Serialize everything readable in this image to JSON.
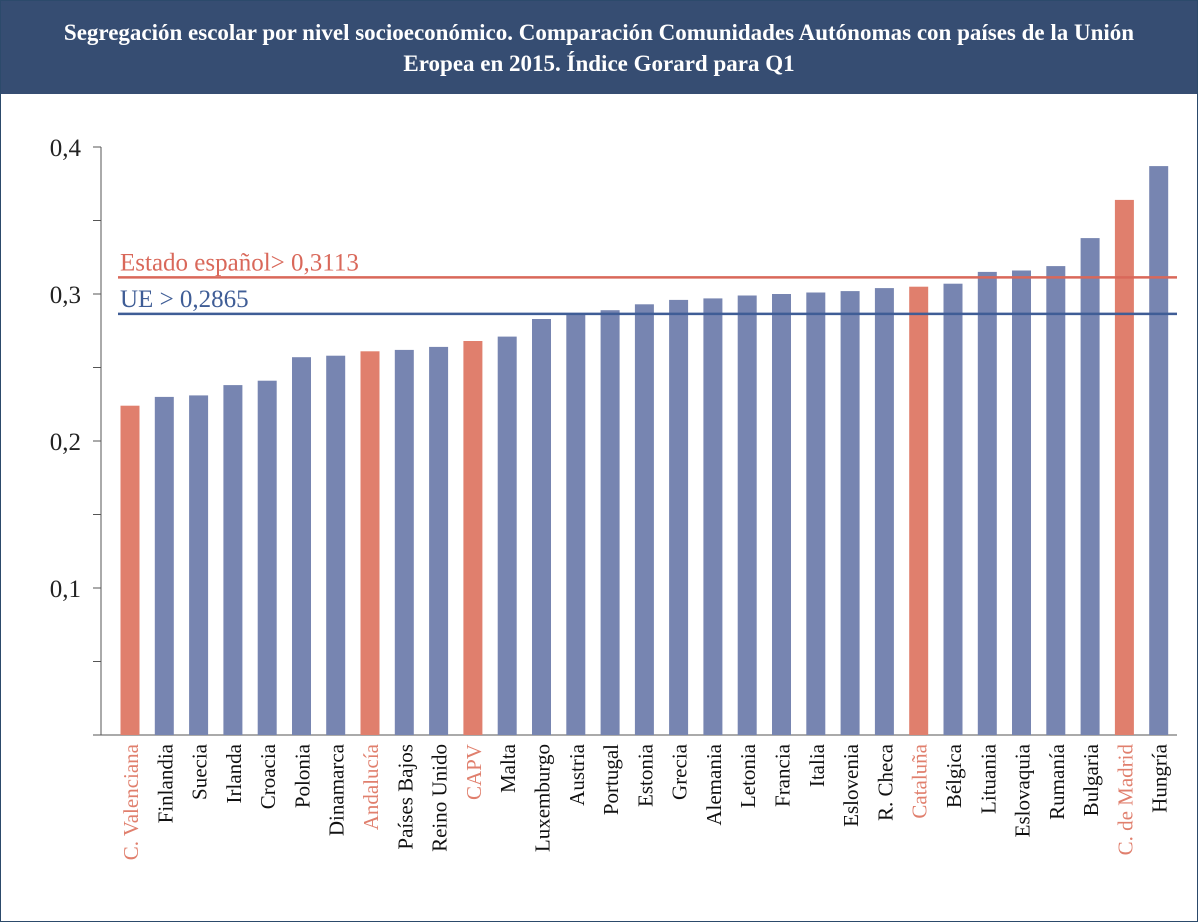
{
  "header": {
    "title": "Segregación escolar por nivel socioeconómico. Comparación Comunidades Autónomas con países de la Unión Eropea en 2015. Índice Gorard para Q1"
  },
  "colors": {
    "eu_bar": "#7785b1",
    "spain_bar": "#e07f6d",
    "spain_line": "#d9685a",
    "eu_line": "#3f5d96",
    "axis": "#555555",
    "header_bg": "#364d72"
  },
  "chart_data": {
    "type": "bar",
    "title": "Segregación escolar por nivel socioeconómico. Comparación Comunidades Autónomas con países de la Unión Eropea en 2015. Índice Gorard para Q1",
    "xlabel": "",
    "ylabel": "",
    "ylim": [
      0,
      0.4
    ],
    "yticks": [
      0,
      0.05,
      0.1,
      0.15,
      0.2,
      0.25,
      0.3,
      0.35,
      0.4
    ],
    "ytick_labels": [
      "0,1",
      "0,2",
      "0,3",
      "0,4"
    ],
    "grid": false,
    "categories": [
      "C. Valenciana",
      "Finlandia",
      "Suecia",
      "Irlanda",
      "Croacia",
      "Polonia",
      "Dinamarca",
      "Andalucía",
      "Países Bajos",
      "Reino Unido",
      "CAPV",
      "Malta",
      "Luxemburgo",
      "Austria",
      "Portugal",
      "Estonia",
      "Grecia",
      "Alemania",
      "Letonia",
      "Francia",
      "Italia",
      "Eslovenia",
      "R. Checa",
      "Cataluña",
      "Bélgica",
      "Lituania",
      "Eslovaquia",
      "Rumanía",
      "Bulgaria",
      "C. de Madrid",
      "Hungría"
    ],
    "values": [
      0.224,
      0.23,
      0.231,
      0.238,
      0.241,
      0.257,
      0.258,
      0.261,
      0.262,
      0.264,
      0.268,
      0.271,
      0.283,
      0.287,
      0.289,
      0.293,
      0.296,
      0.297,
      0.299,
      0.3,
      0.301,
      0.302,
      0.304,
      0.305,
      0.307,
      0.315,
      0.316,
      0.319,
      0.338,
      0.364,
      0.387
    ],
    "highlighted": [
      "C. Valenciana",
      "Andalucía",
      "CAPV",
      "Cataluña",
      "C. de Madrid"
    ],
    "reference_lines": [
      {
        "label": "Estado español> 0,3113",
        "value": 0.3113
      },
      {
        "label": "UE > 0,2865",
        "value": 0.2865
      }
    ]
  }
}
